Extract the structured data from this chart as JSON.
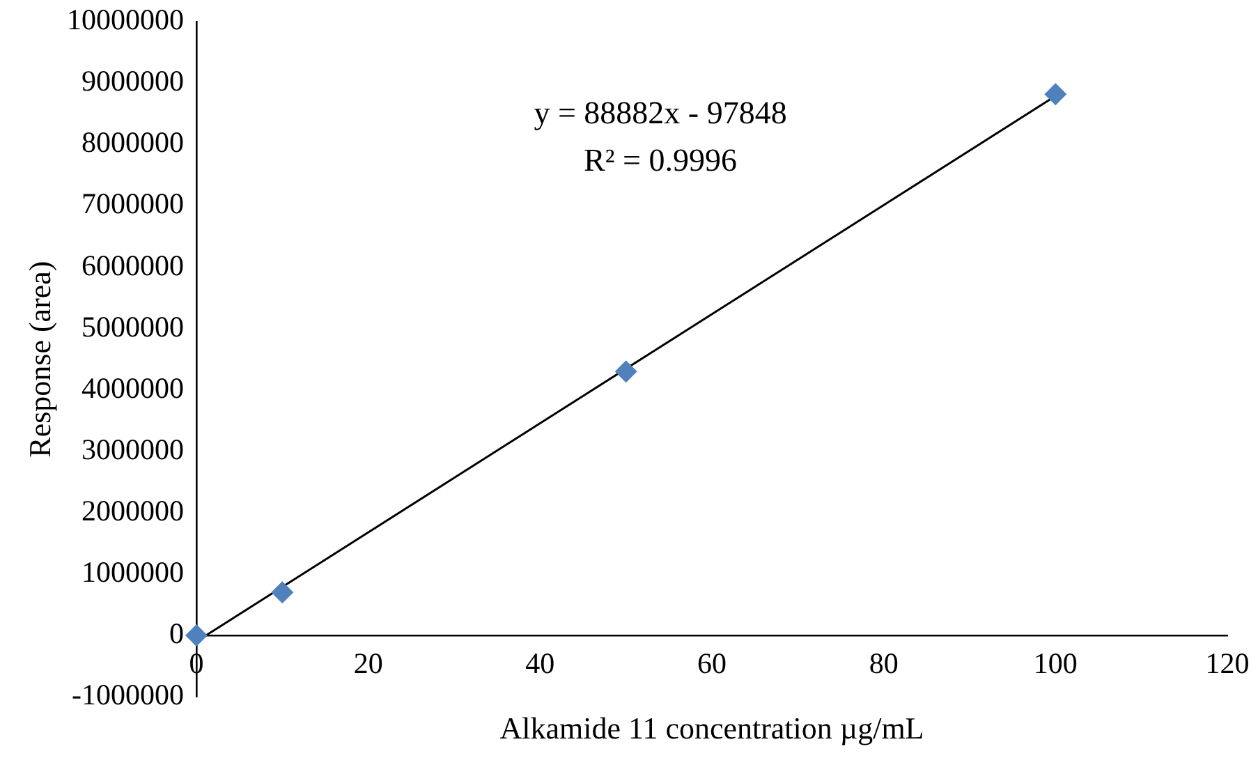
{
  "chart_data": {
    "type": "scatter",
    "xlabel": "Alkamide 11 concentration µg/mL",
    "ylabel": "Response (area)",
    "annotations": [
      "y = 88882x - 97848",
      "R² = 0.9996"
    ],
    "x": [
      0,
      10,
      50,
      100
    ],
    "series": [
      {
        "type": "scatter",
        "color": "#4f81bd",
        "marker": "diamond",
        "values": [
          0,
          700000,
          4300000,
          8820000
        ]
      },
      {
        "type": "line",
        "color": "#000000",
        "marker": "none",
        "line_style": "solid",
        "x": [
          0,
          100
        ],
        "values": [
          -100000,
          8790000
        ]
      }
    ],
    "xlim": [
      0,
      120
    ],
    "xticks": [
      0,
      20,
      40,
      60,
      80,
      100,
      120
    ],
    "ylim": [
      -1000000,
      10000000
    ],
    "yticks": [
      -1000000,
      0,
      1000000,
      2000000,
      3000000,
      4000000,
      5000000,
      6000000,
      7000000,
      8000000,
      9000000,
      10000000
    ],
    "grid": false,
    "legend": false
  }
}
